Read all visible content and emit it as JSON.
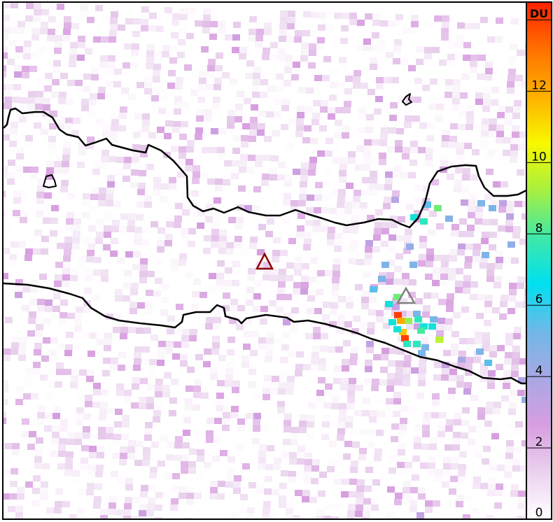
{
  "map": {
    "colorbar": {
      "unit_label": "DU",
      "range": [
        0,
        14.5
      ],
      "ticks": [
        0,
        2,
        4,
        6,
        8,
        10,
        12,
        14
      ],
      "tick_labels": [
        "0",
        "2",
        "4",
        "6",
        "8",
        "10",
        "12",
        ""
      ],
      "colors": [
        "#ffffff",
        "#ead2ee",
        "#d89ee0",
        "#a8a8e4",
        "#70b8e8",
        "#00e0f0",
        "#40e8a8",
        "#a8f040",
        "#f8f800",
        "#ffb000",
        "#ff7000",
        "#ff2000"
      ]
    },
    "markers": [
      {
        "name": "volcano-marker-dark-red",
        "color": "#8b0000"
      },
      {
        "name": "volcano-marker-gray",
        "color": "#808080"
      }
    ],
    "coastline_color": "#000000"
  }
}
